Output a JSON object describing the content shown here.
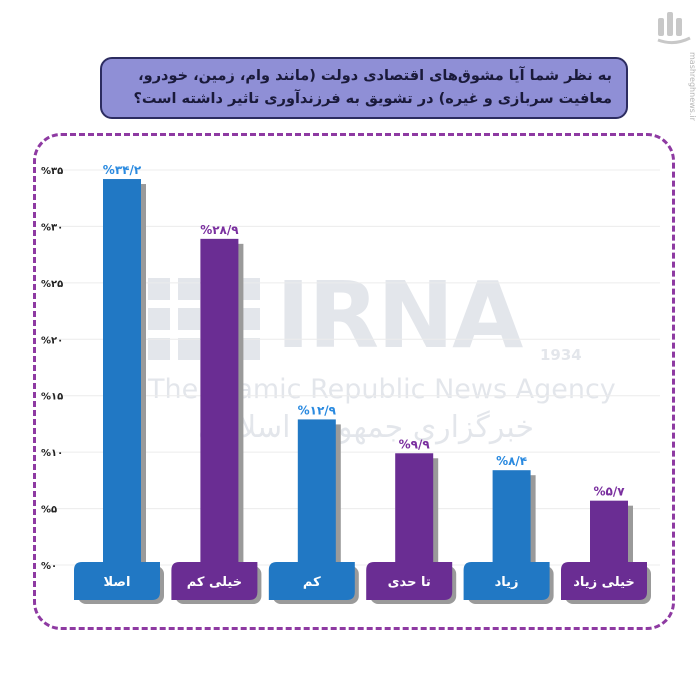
{
  "question": {
    "line1": "به نظر شما آیا مشوق‌های اقتصادی دولت (مانند وام، زمین، خودرو،",
    "line2": "معافیت سربازی و غیره) در تشویق به فرزندآوری تاثیر داشته است؟"
  },
  "branding": {
    "site": "mashreghnews.ir",
    "mark_icon": "mashregh-logo-icon"
  },
  "watermark": {
    "name": "IRNA",
    "year": "1934",
    "english": "The Islamic Republic News Agency",
    "persian": "خبرگزاری جمهوری اسلامی"
  },
  "colors": {
    "blue": "#2178c4",
    "purple": "#6a2d93",
    "shadow": "#9a9a9a",
    "label_blue": "#2a8ae0",
    "label_purple": "#7a2f9f",
    "frame": "#8e3aa2"
  },
  "chart_data": {
    "type": "bar",
    "categories": [
      "اصلا",
      "خیلی کم",
      "کم",
      "تا حدی",
      "زیاد",
      "خیلی زیاد"
    ],
    "values": [
      34.2,
      28.9,
      12.9,
      9.9,
      8.4,
      5.7
    ],
    "value_labels": [
      "%۳۴/۲",
      "%۲۸/۹",
      "%۱۲/۹",
      "%۹/۹",
      "%۸/۴",
      "%۵/۷"
    ],
    "bar_colors": [
      "blue",
      "purple",
      "blue",
      "purple",
      "blue",
      "purple"
    ],
    "y_ticks": [
      0,
      5,
      10,
      15,
      20,
      25,
      30,
      35
    ],
    "y_tick_labels": [
      "%۰",
      "%۵",
      "%۱۰",
      "%۱۵",
      "%۲۰",
      "%۲۵",
      "%۳۰",
      "%۳۵"
    ],
    "ylim": [
      0,
      35
    ],
    "grid": true,
    "title": "",
    "xlabel": "",
    "ylabel": ""
  }
}
